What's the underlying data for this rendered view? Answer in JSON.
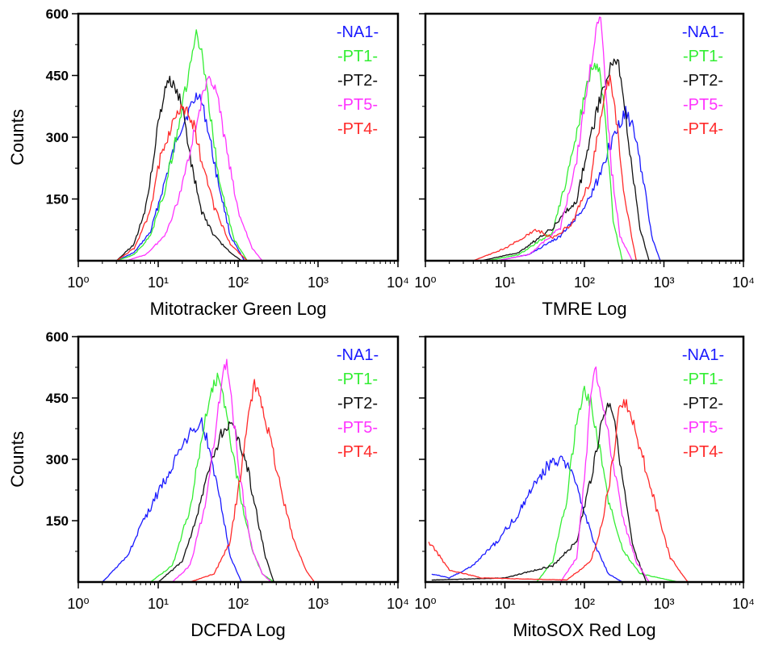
{
  "colors": {
    "NA1": "#1a1aff",
    "PT1": "#33ee33",
    "PT2": "#111111",
    "PT5": "#ff33ff",
    "PT4": "#ff2a2a"
  },
  "chart_data": [
    {
      "type": "line",
      "panel": "top-left",
      "xlabel": "Mitotracker Green Log",
      "ylabel": "Counts",
      "xscale": "log",
      "xlim": [
        1,
        10000
      ],
      "ylim": [
        0,
        600
      ],
      "xticks": [
        "10⁰",
        "10¹",
        "10²",
        "10³",
        "10⁴"
      ],
      "yticks": [
        "150",
        "300",
        "450",
        "600"
      ],
      "legend_position": "top-right",
      "legend": [
        "-NA1-",
        "-PT1-",
        "-PT2-",
        "-PT5-",
        "-PT4-"
      ],
      "series": [
        {
          "name": "NA1",
          "x": [
            3,
            5,
            8,
            12,
            18,
            25,
            32,
            40,
            55,
            80,
            120
          ],
          "y": [
            0,
            20,
            70,
            190,
            310,
            370,
            410,
            340,
            200,
            60,
            0
          ]
        },
        {
          "name": "PT1",
          "x": [
            3,
            5,
            8,
            12,
            18,
            25,
            30,
            35,
            45,
            60,
            90,
            130
          ],
          "y": [
            0,
            15,
            60,
            170,
            330,
            470,
            550,
            500,
            350,
            180,
            50,
            0
          ]
        },
        {
          "name": "PT2",
          "x": [
            3,
            5,
            7,
            10,
            13,
            16,
            20,
            25,
            35,
            50,
            80,
            110
          ],
          "y": [
            0,
            40,
            130,
            330,
            440,
            420,
            380,
            250,
            120,
            60,
            20,
            0
          ]
        },
        {
          "name": "PT5",
          "x": [
            4,
            7,
            12,
            18,
            25,
            35,
            45,
            55,
            70,
            100,
            150,
            200
          ],
          "y": [
            0,
            15,
            60,
            150,
            270,
            390,
            450,
            400,
            280,
            120,
            30,
            0
          ]
        },
        {
          "name": "PT4",
          "x": [
            3,
            5,
            8,
            11,
            15,
            20,
            28,
            35,
            50,
            80,
            130
          ],
          "y": [
            0,
            30,
            120,
            270,
            330,
            380,
            330,
            240,
            130,
            40,
            0
          ]
        }
      ]
    },
    {
      "type": "line",
      "panel": "top-right",
      "xlabel": "TMRE Log",
      "ylabel": "",
      "xscale": "log",
      "xlim": [
        1,
        10000
      ],
      "ylim": [
        0,
        600
      ],
      "xticks": [
        "10⁰",
        "10¹",
        "10²",
        "10³",
        "10⁴"
      ],
      "yticks": [],
      "legend_position": "top-right",
      "legend": [
        "-NA1-",
        "-PT1-",
        "-PT2-",
        "-PT5-",
        "-PT4-"
      ],
      "series": [
        {
          "name": "NA1",
          "x": [
            8,
            20,
            50,
            100,
            150,
            200,
            260,
            330,
            400,
            550,
            700,
            900
          ],
          "y": [
            0,
            15,
            60,
            130,
            200,
            270,
            320,
            360,
            330,
            200,
            60,
            0
          ]
        },
        {
          "name": "PT1",
          "x": [
            6,
            15,
            40,
            70,
            100,
            130,
            160,
            190,
            230,
            300
          ],
          "y": [
            0,
            15,
            70,
            250,
            400,
            480,
            450,
            300,
            100,
            0
          ]
        },
        {
          "name": "PT2",
          "x": [
            5,
            15,
            40,
            80,
            120,
            170,
            220,
            260,
            320,
            400,
            500,
            650
          ],
          "y": [
            0,
            20,
            80,
            150,
            300,
            420,
            480,
            490,
            380,
            220,
            80,
            0
          ]
        },
        {
          "name": "PT5",
          "x": [
            8,
            20,
            50,
            80,
            110,
            140,
            160,
            180,
            220,
            280,
            400
          ],
          "y": [
            0,
            15,
            80,
            250,
            430,
            560,
            590,
            450,
            220,
            60,
            0
          ]
        },
        {
          "name": "PT4",
          "x": [
            4,
            10,
            18,
            25,
            40,
            70,
            120,
            170,
            210,
            260,
            320,
            450
          ],
          "y": [
            0,
            30,
            60,
            75,
            55,
            90,
            200,
            380,
            450,
            320,
            150,
            0
          ]
        }
      ]
    },
    {
      "type": "line",
      "panel": "bottom-left",
      "xlabel": "DCFDA Log",
      "ylabel": "Counts",
      "xscale": "log",
      "xlim": [
        1,
        10000
      ],
      "ylim": [
        0,
        600
      ],
      "xticks": [
        "10⁰",
        "10¹",
        "10²",
        "10³",
        "10⁴"
      ],
      "yticks": [
        "150",
        "300",
        "450",
        "600"
      ],
      "legend_position": "top-right",
      "legend": [
        "-NA1-",
        "-PT1-",
        "-PT2-",
        "-PT5-",
        "-PT4-"
      ],
      "series": [
        {
          "name": "NA1",
          "x": [
            2,
            4,
            7,
            12,
            20,
            28,
            35,
            45,
            60,
            80,
            110
          ],
          "y": [
            0,
            60,
            160,
            250,
            330,
            380,
            390,
            320,
            200,
            60,
            0
          ]
        },
        {
          "name": "PT1",
          "x": [
            8,
            15,
            25,
            35,
            45,
            55,
            65,
            80,
            110,
            150,
            200,
            280
          ],
          "y": [
            0,
            40,
            180,
            350,
            470,
            500,
            450,
            350,
            200,
            80,
            20,
            0
          ]
        },
        {
          "name": "PT2",
          "x": [
            10,
            20,
            35,
            50,
            65,
            80,
            100,
            130,
            170,
            220,
            280
          ],
          "y": [
            0,
            50,
            200,
            320,
            370,
            380,
            350,
            280,
            170,
            60,
            0
          ]
        },
        {
          "name": "PT5",
          "x": [
            15,
            25,
            40,
            55,
            65,
            72,
            85,
            110,
            150,
            200,
            260
          ],
          "y": [
            0,
            40,
            200,
            400,
            520,
            540,
            420,
            230,
            80,
            20,
            0
          ]
        },
        {
          "name": "PT4",
          "x": [
            25,
            50,
            80,
            110,
            140,
            160,
            190,
            250,
            350,
            500,
            700,
            900
          ],
          "y": [
            0,
            20,
            100,
            280,
            420,
            480,
            450,
            350,
            220,
            100,
            30,
            0
          ]
        }
      ]
    },
    {
      "type": "line",
      "panel": "bottom-right",
      "xlabel": "MitoSOX Red Log",
      "ylabel": "",
      "xscale": "log",
      "xlim": [
        1,
        10000
      ],
      "ylim": [
        0,
        600
      ],
      "xticks": [
        "10⁰",
        "10¹",
        "10²",
        "10³",
        "10⁴"
      ],
      "yticks": [],
      "legend_position": "top-right",
      "legend": [
        "-NA1-",
        "-PT1-",
        "-PT2-",
        "-PT5-",
        "-PT4-"
      ],
      "series": [
        {
          "name": "NA1",
          "x": [
            1.2,
            2,
            4,
            8,
            15,
            25,
            40,
            60,
            90,
            130,
            200,
            300
          ],
          "y": [
            20,
            10,
            40,
            100,
            170,
            250,
            300,
            290,
            200,
            100,
            20,
            0
          ]
        },
        {
          "name": "PT1",
          "x": [
            25,
            40,
            60,
            80,
            100,
            120,
            150,
            200,
            300,
            500,
            900,
            1500
          ],
          "y": [
            0,
            50,
            200,
            400,
            470,
            440,
            340,
            200,
            80,
            20,
            10,
            0
          ]
        },
        {
          "name": "PT2",
          "x": [
            1.2,
            10,
            40,
            80,
            120,
            170,
            210,
            250,
            300,
            400,
            600
          ],
          "y": [
            5,
            10,
            40,
            100,
            250,
            400,
            440,
            380,
            250,
            90,
            0
          ]
        },
        {
          "name": "PT5",
          "x": [
            50,
            80,
            100,
            120,
            135,
            160,
            200,
            250,
            320,
            450,
            650
          ],
          "y": [
            0,
            60,
            250,
            450,
            530,
            460,
            360,
            250,
            140,
            50,
            0
          ]
        },
        {
          "name": "PT4",
          "x": [
            1.1,
            2,
            5,
            60,
            120,
            170,
            230,
            280,
            350,
            500,
            800,
            1200,
            2000
          ],
          "y": [
            100,
            30,
            10,
            5,
            50,
            150,
            300,
            440,
            430,
            330,
            180,
            60,
            0
          ]
        }
      ]
    }
  ]
}
